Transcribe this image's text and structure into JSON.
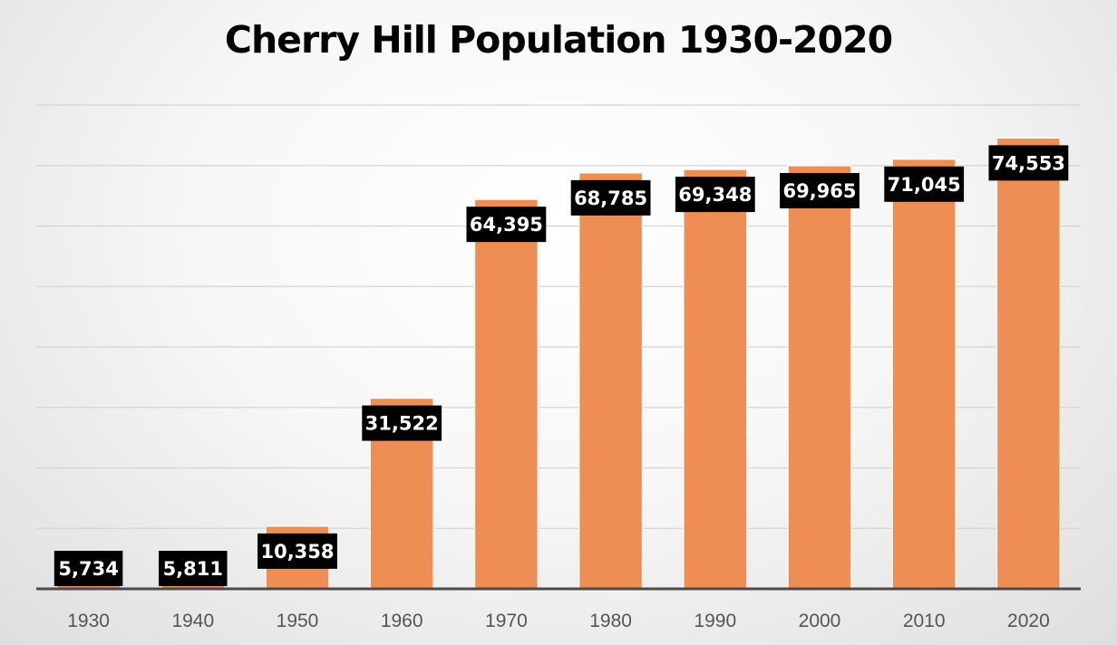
{
  "chart_data": {
    "type": "bar",
    "title": "Cherry Hill Population 1930-2020",
    "xlabel": "",
    "ylabel": "",
    "categories": [
      "1930",
      "1940",
      "1950",
      "1960",
      "1970",
      "1980",
      "1990",
      "2000",
      "2010",
      "2020"
    ],
    "values": [
      5734,
      5811,
      10358,
      31522,
      64395,
      68785,
      69348,
      69965,
      71045,
      74553
    ],
    "data_labels": [
      "5,734",
      "5,811",
      "10,358",
      "31,522",
      "64,395",
      "68,785",
      "69,348",
      "69,965",
      "71,045",
      "74,553"
    ],
    "ylim": [
      0,
      80000
    ],
    "grid": true,
    "y_axis_labels_visible": false,
    "legend": "none",
    "colors": {
      "bar": "#EE8E54",
      "label_background": "#000000",
      "label_text": "#FFFFFF"
    }
  }
}
